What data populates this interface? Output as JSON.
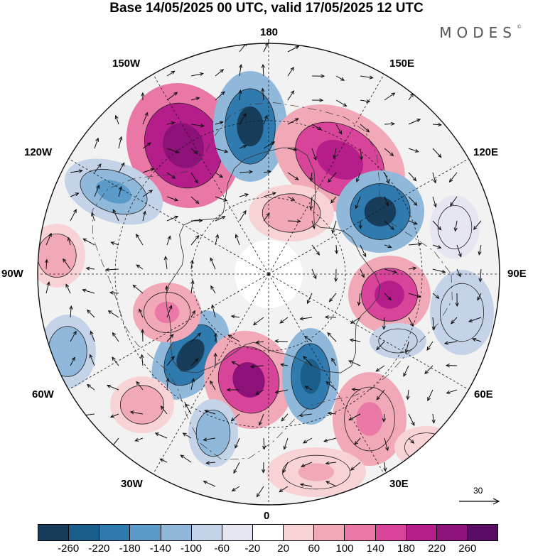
{
  "title": "Base 14/05/2025 00 UTC, valid 17/05/2025 12 UTC",
  "brand": {
    "name": "MODES",
    "mark": "©"
  },
  "map": {
    "projection": "north-polar-stereographic",
    "longitude_labels": [
      "180",
      "150E",
      "120E",
      "90E",
      "60E",
      "30E",
      "0",
      "30W",
      "60W",
      "90W",
      "120W",
      "150W"
    ],
    "field": "anomaly",
    "grid": true,
    "colors": {
      "background": "#f2f2f2",
      "coastline": "#3a3a3a",
      "grid": "#1a1a1a",
      "vectors": "#111111"
    },
    "wind_reference": {
      "value": "30"
    }
  },
  "colorbar": {
    "ticks": [
      "-260",
      "-220",
      "-180",
      "-140",
      "-100",
      "-60",
      "-20",
      "20",
      "60",
      "100",
      "140",
      "180",
      "220",
      "260"
    ],
    "colors": [
      "#173d5a",
      "#1a5e8c",
      "#2f7bb0",
      "#5b9bc9",
      "#90b8da",
      "#c4d3e8",
      "#e6e6f2",
      "#ffffff",
      "#f8d3d6",
      "#f1a8b7",
      "#ea78a6",
      "#d8449a",
      "#b51d8a",
      "#8c1279",
      "#5a0c64"
    ]
  }
}
